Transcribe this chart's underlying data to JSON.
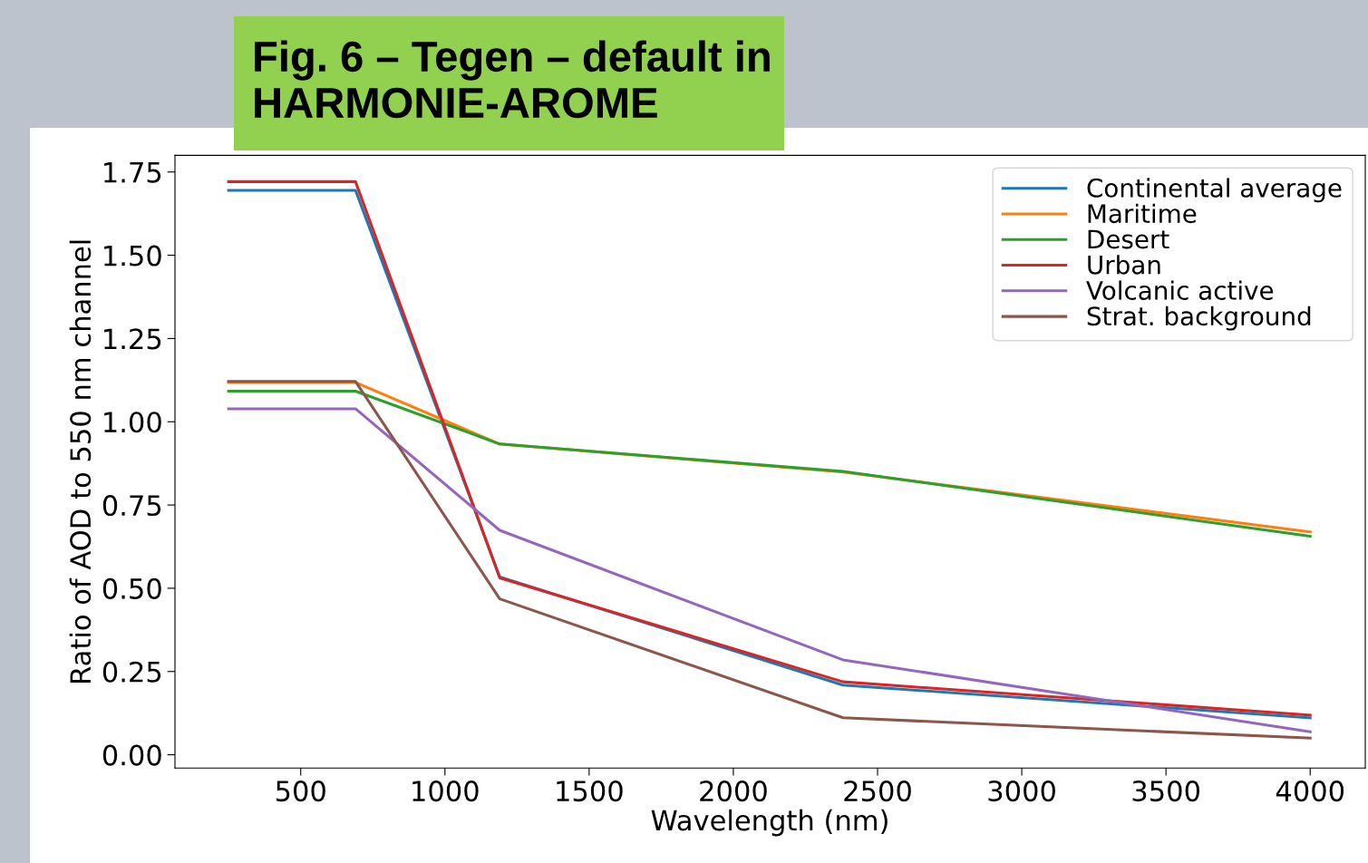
{
  "chart_data": {
    "type": "line",
    "title": "Fig. 6 – Tegen – default in HARMONIE-AROME",
    "xlabel": "Wavelength (nm)",
    "ylabel": "Ratio of AOD to 550 nm channel",
    "x": [
      250,
      690,
      1190,
      2380,
      4000
    ],
    "series": [
      {
        "name": "Continental average",
        "color": "#1f77b4",
        "values": [
          1.695,
          1.695,
          0.534,
          0.209,
          0.111
        ]
      },
      {
        "name": "Maritime",
        "color": "#ff7f0e",
        "values": [
          1.118,
          1.118,
          0.933,
          0.849,
          0.669
        ]
      },
      {
        "name": "Desert",
        "color": "#2ca02c",
        "values": [
          1.092,
          1.092,
          0.933,
          0.851,
          0.656
        ]
      },
      {
        "name": "Urban",
        "color": "#d62728",
        "values": [
          1.721,
          1.721,
          0.531,
          0.219,
          0.119
        ]
      },
      {
        "name": "Volcanic active",
        "color": "#9467bd",
        "values": [
          1.039,
          1.039,
          0.674,
          0.285,
          0.069
        ]
      },
      {
        "name": "Strat. background",
        "color": "#8c564b",
        "values": [
          1.121,
          1.121,
          0.468,
          0.111,
          0.05
        ]
      }
    ],
    "xlim": [
      64,
      4191
    ],
    "ylim": [
      -0.04,
      1.8
    ],
    "xticks": [
      500,
      1000,
      1500,
      2000,
      2500,
      3000,
      3500,
      4000
    ],
    "yticks": [
      {
        "value": 0,
        "label": "0.00"
      },
      {
        "value": 0.25,
        "label": "0.25"
      },
      {
        "value": 0.5,
        "label": "0.50"
      },
      {
        "value": 0.75,
        "label": "0.75"
      },
      {
        "value": 1.0,
        "label": "1.00"
      },
      {
        "value": 1.25,
        "label": "1.25"
      },
      {
        "value": 1.5,
        "label": "1.50"
      },
      {
        "value": 1.75,
        "label": "1.75"
      }
    ],
    "grid": false,
    "legend": "top right",
    "marker": "none",
    "line_style": "solid"
  }
}
